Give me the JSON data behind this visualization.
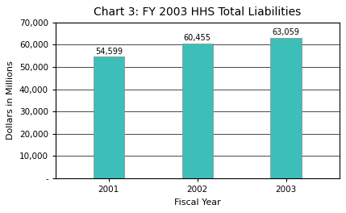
{
  "title": "Chart 3: FY 2003 HHS Total Liabilities",
  "categories": [
    "2001",
    "2002",
    "2003"
  ],
  "values": [
    54599,
    60455,
    63059
  ],
  "bar_color": "#3CBFB8",
  "bar_edge_color": "#888888",
  "xlabel": "Fiscal Year",
  "ylabel": "Dollars in Millions",
  "ylim": [
    0,
    70000
  ],
  "yticks": [
    0,
    10000,
    20000,
    30000,
    40000,
    50000,
    60000,
    70000
  ],
  "ytick_labels": [
    "-",
    "10,000",
    "20,000",
    "30,000",
    "40,000",
    "50,000",
    "60,000",
    "70,000"
  ],
  "bar_labels": [
    "54,599",
    "60,455",
    "63,059"
  ],
  "background_color": "#ffffff",
  "title_fontsize": 10,
  "axis_fontsize": 8,
  "label_fontsize": 7.5,
  "bar_label_fontsize": 7,
  "bar_width": 0.35,
  "figsize": [
    4.29,
    2.64
  ],
  "dpi": 100
}
